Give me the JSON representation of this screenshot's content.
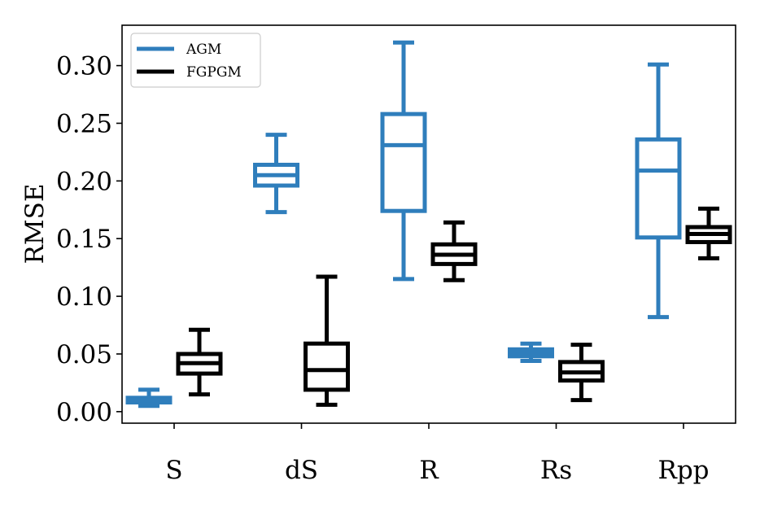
{
  "chart_data": {
    "type": "boxplot",
    "title": "",
    "xlabel": "",
    "ylabel": "RMSE",
    "ylim": [
      -0.01,
      0.335
    ],
    "yticks": [
      0.0,
      0.05,
      0.1,
      0.15,
      0.2,
      0.25,
      0.3
    ],
    "ytick_labels": [
      "0.00",
      "0.05",
      "0.10",
      "0.15",
      "0.20",
      "0.25",
      "0.30"
    ],
    "grid": false,
    "legend_position": "top-left",
    "categories": [
      "S",
      "dS",
      "R",
      "Rs",
      "Rpp"
    ],
    "series": [
      {
        "name": "AGM",
        "color": "#2f7ebc",
        "boxes": [
          {
            "whisker_low": 0.005,
            "q1": 0.008,
            "median": 0.01,
            "q3": 0.012,
            "whisker_high": 0.019
          },
          {
            "whisker_low": 0.173,
            "q1": 0.196,
            "median": 0.205,
            "q3": 0.214,
            "whisker_high": 0.24
          },
          {
            "whisker_low": 0.115,
            "q1": 0.174,
            "median": 0.231,
            "q3": 0.258,
            "whisker_high": 0.32
          },
          {
            "whisker_low": 0.044,
            "q1": 0.048,
            "median": 0.051,
            "q3": 0.054,
            "whisker_high": 0.059
          },
          {
            "whisker_low": 0.082,
            "q1": 0.151,
            "median": 0.209,
            "q3": 0.236,
            "whisker_high": 0.301
          }
        ]
      },
      {
        "name": "FGPGM",
        "color": "#000000",
        "boxes": [
          {
            "whisker_low": 0.015,
            "q1": 0.033,
            "median": 0.042,
            "q3": 0.05,
            "whisker_high": 0.071
          },
          {
            "whisker_low": 0.006,
            "q1": 0.019,
            "median": 0.036,
            "q3": 0.059,
            "whisker_high": 0.117
          },
          {
            "whisker_low": 0.114,
            "q1": 0.128,
            "median": 0.136,
            "q3": 0.145,
            "whisker_high": 0.164
          },
          {
            "whisker_low": 0.01,
            "q1": 0.027,
            "median": 0.034,
            "q3": 0.043,
            "whisker_high": 0.058
          },
          {
            "whisker_low": 0.133,
            "q1": 0.147,
            "median": 0.154,
            "q3": 0.16,
            "whisker_high": 0.176
          }
        ]
      }
    ]
  }
}
